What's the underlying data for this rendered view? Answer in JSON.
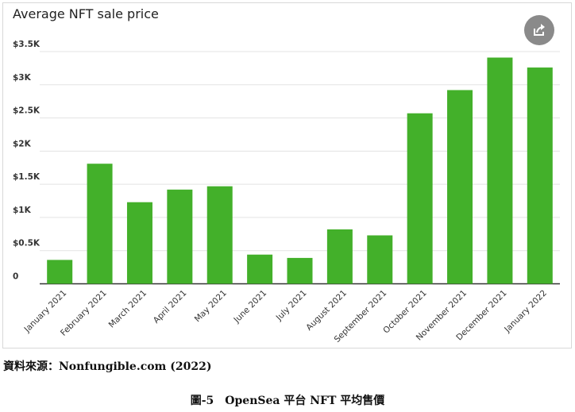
{
  "chart_data": {
    "type": "bar",
    "title": "Average NFT sale price",
    "categories": [
      "January 2021",
      "February 2021",
      "March 2021",
      "April 2021",
      "May 2021",
      "June 2021",
      "July 2021",
      "August 2021",
      "September 2021",
      "October 2021",
      "November 2021",
      "December 2021",
      "January 2022"
    ],
    "values": [
      360,
      1810,
      1230,
      1420,
      1470,
      440,
      390,
      820,
      730,
      2570,
      2920,
      3410,
      3260
    ],
    "yticks": [
      "0",
      "$0.5K",
      "$1K",
      "$1.5K",
      "$2K",
      "$2.5K",
      "$3K",
      "$3.5K"
    ],
    "ylim": [
      0,
      3500
    ],
    "xlabel": "",
    "ylabel": "",
    "grid": true,
    "bar_color": "#43b02a"
  },
  "share_icon": "share-icon",
  "source": "資料來源：Nonfungible.com (2022)",
  "caption": "圖-5　OpenSea 平台 NFT 平均售價"
}
